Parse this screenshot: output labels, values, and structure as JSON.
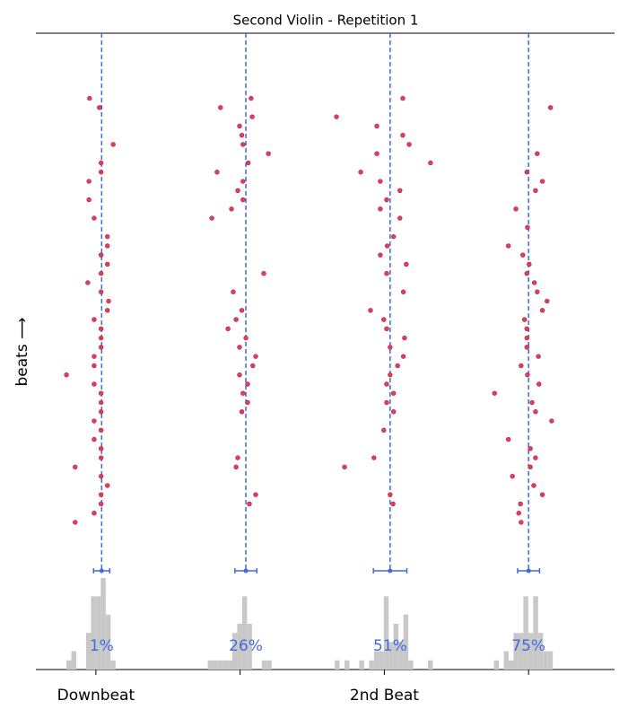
{
  "chart_data": {
    "type": "scatter",
    "title": "Second Violin - Repetition 1",
    "ylabel": "beats ⟶",
    "xlim": [
      -10.4,
      89.9
    ],
    "ylim": [
      -4.26,
      54.07
    ],
    "xticks": [
      {
        "value": 0,
        "label": "Downbeat"
      },
      {
        "value": 25,
        "label": null
      },
      {
        "value": 50,
        "label": "2nd Beat"
      },
      {
        "value": 75,
        "label": null
      }
    ],
    "color": "#e0405f",
    "mean_color": "#4169e1",
    "hist_color": "#c8c8c8",
    "series": [
      {
        "x": [
          -1.1,
          0.6,
          3.0,
          0.9,
          0.9,
          -1.2,
          -1.2,
          -0.3,
          2.0,
          2.0,
          0.9,
          2.0,
          0.9,
          -1.4,
          0.9,
          2.2,
          2.0,
          -0.3,
          0.9,
          0.9,
          0.9,
          -0.3,
          -0.3,
          -5.1,
          -0.3,
          0.9,
          0.9,
          0.9,
          -0.3,
          0.9,
          -0.3,
          0.9,
          0.9,
          -3.6,
          0.9,
          2.0,
          0.9,
          0.9,
          -0.3,
          -3.6
        ],
        "y": [
          47,
          46,
          42,
          40,
          39,
          38,
          36,
          34,
          32,
          31,
          30,
          29,
          28,
          27,
          26,
          25,
          24,
          23,
          22,
          21,
          20,
          19,
          18,
          17,
          16,
          15,
          14,
          13,
          12,
          11,
          10,
          9,
          8,
          7,
          6,
          5,
          4,
          3,
          2,
          1
        ],
        "mean": 1,
        "mean_label": "1%",
        "error": 1.4,
        "hist_bins": [
          -5.1,
          -4.25,
          -3.4,
          -2.55,
          -1.7,
          -0.85,
          0,
          0.85,
          1.7,
          2.55,
          3.4
        ],
        "hist_counts": [
          1,
          2,
          0,
          0,
          4,
          8,
          8,
          10,
          6,
          1
        ]
      },
      {
        "x": [
          26.9,
          21.6,
          27.1,
          24.9,
          25.3,
          25.5,
          29.9,
          26.4,
          21.0,
          25.5,
          24.6,
          25.5,
          23.5,
          20.1,
          29.1,
          23.8,
          25.3,
          24.3,
          22.9,
          26.0,
          24.9,
          27.7,
          27.2,
          24.9,
          26.3,
          25.5,
          26.3,
          25.3,
          24.6,
          24.3,
          27.7,
          26.6
        ],
        "y": [
          47,
          46,
          45,
          44,
          43,
          42,
          41,
          40,
          39,
          38,
          37,
          36,
          35,
          34,
          28,
          26,
          24,
          23,
          22,
          21,
          20,
          19,
          18,
          17,
          16,
          15,
          14,
          13,
          8,
          7,
          4,
          3
        ],
        "mean": 26,
        "mean_label": "26%",
        "error": 1.9,
        "hist_bins": [
          19.4,
          20.25,
          21.1,
          21.95,
          22.8,
          23.65,
          24.5,
          25.35,
          26.2,
          27.05,
          27.9,
          28.75,
          29.6,
          30.45
        ],
        "hist_counts": [
          1,
          1,
          1,
          1,
          1,
          4,
          5,
          8,
          5,
          0,
          0,
          1,
          1
        ]
      },
      {
        "x": [
          53.2,
          41.7,
          48.7,
          53.2,
          54.3,
          48.7,
          58.0,
          45.9,
          49.3,
          52.7,
          50.4,
          49.3,
          52.7,
          51.6,
          50.5,
          49.3,
          53.8,
          50.4,
          53.3,
          47.6,
          49.9,
          50.4,
          53.5,
          51.0,
          53.3,
          52.3,
          51.0,
          50.4,
          51.6,
          50.4,
          51.6,
          49.9,
          48.2,
          43.1,
          51.0,
          51.5
        ],
        "y": [
          47,
          45,
          44,
          43,
          42,
          41,
          40,
          39,
          38,
          37,
          36,
          35,
          34,
          32,
          31,
          30,
          29,
          28,
          26,
          24,
          23,
          22,
          21,
          20,
          19,
          18,
          17,
          16,
          15,
          14,
          13,
          11,
          8,
          7,
          4,
          3
        ],
        "mean": 51,
        "mean_label": "51%",
        "error": 2.9,
        "hist_bins": [
          41.4,
          42.25,
          43.1,
          43.95,
          44.8,
          45.65,
          46.5,
          47.35,
          48.2,
          49.05,
          49.9,
          50.75,
          51.6,
          52.45,
          53.3,
          54.15,
          55.0,
          55.85,
          56.7,
          57.55,
          58.4
        ],
        "hist_counts": [
          1,
          0,
          1,
          0,
          0,
          1,
          0,
          1,
          2,
          2,
          8,
          3,
          5,
          3,
          6,
          1,
          0,
          0,
          0,
          1
        ]
      },
      {
        "x": [
          78.8,
          76.5,
          74.7,
          77.4,
          76.2,
          72.8,
          74.8,
          71.5,
          74.0,
          75.1,
          74.7,
          76.0,
          76.5,
          78.2,
          77.4,
          74.3,
          74.7,
          74.7,
          74.7,
          76.7,
          73.7,
          74.8,
          76.8,
          69.1,
          75.6,
          76.2,
          79.0,
          71.5,
          75.3,
          76.2,
          75.3,
          72.2,
          75.9,
          77.4,
          73.6,
          73.3,
          73.7
        ],
        "y": [
          46,
          41,
          39,
          38,
          37,
          35,
          33,
          31,
          30,
          29,
          28,
          27,
          26,
          25,
          24,
          23,
          22,
          21,
          20,
          19,
          18,
          17,
          16,
          15,
          14,
          13,
          12,
          10,
          9,
          8,
          7,
          6,
          5,
          4,
          3,
          2,
          1
        ],
        "mean": 75,
        "mean_label": "75%",
        "error": 1.9,
        "hist_bins": [
          69.0,
          69.85,
          70.7,
          71.55,
          72.4,
          73.25,
          74.1,
          74.95,
          75.8,
          76.65,
          77.5,
          78.35,
          79.2
        ],
        "hist_counts": [
          1,
          0,
          2,
          1,
          4,
          4,
          8,
          4,
          8,
          4,
          2,
          2
        ]
      }
    ]
  }
}
